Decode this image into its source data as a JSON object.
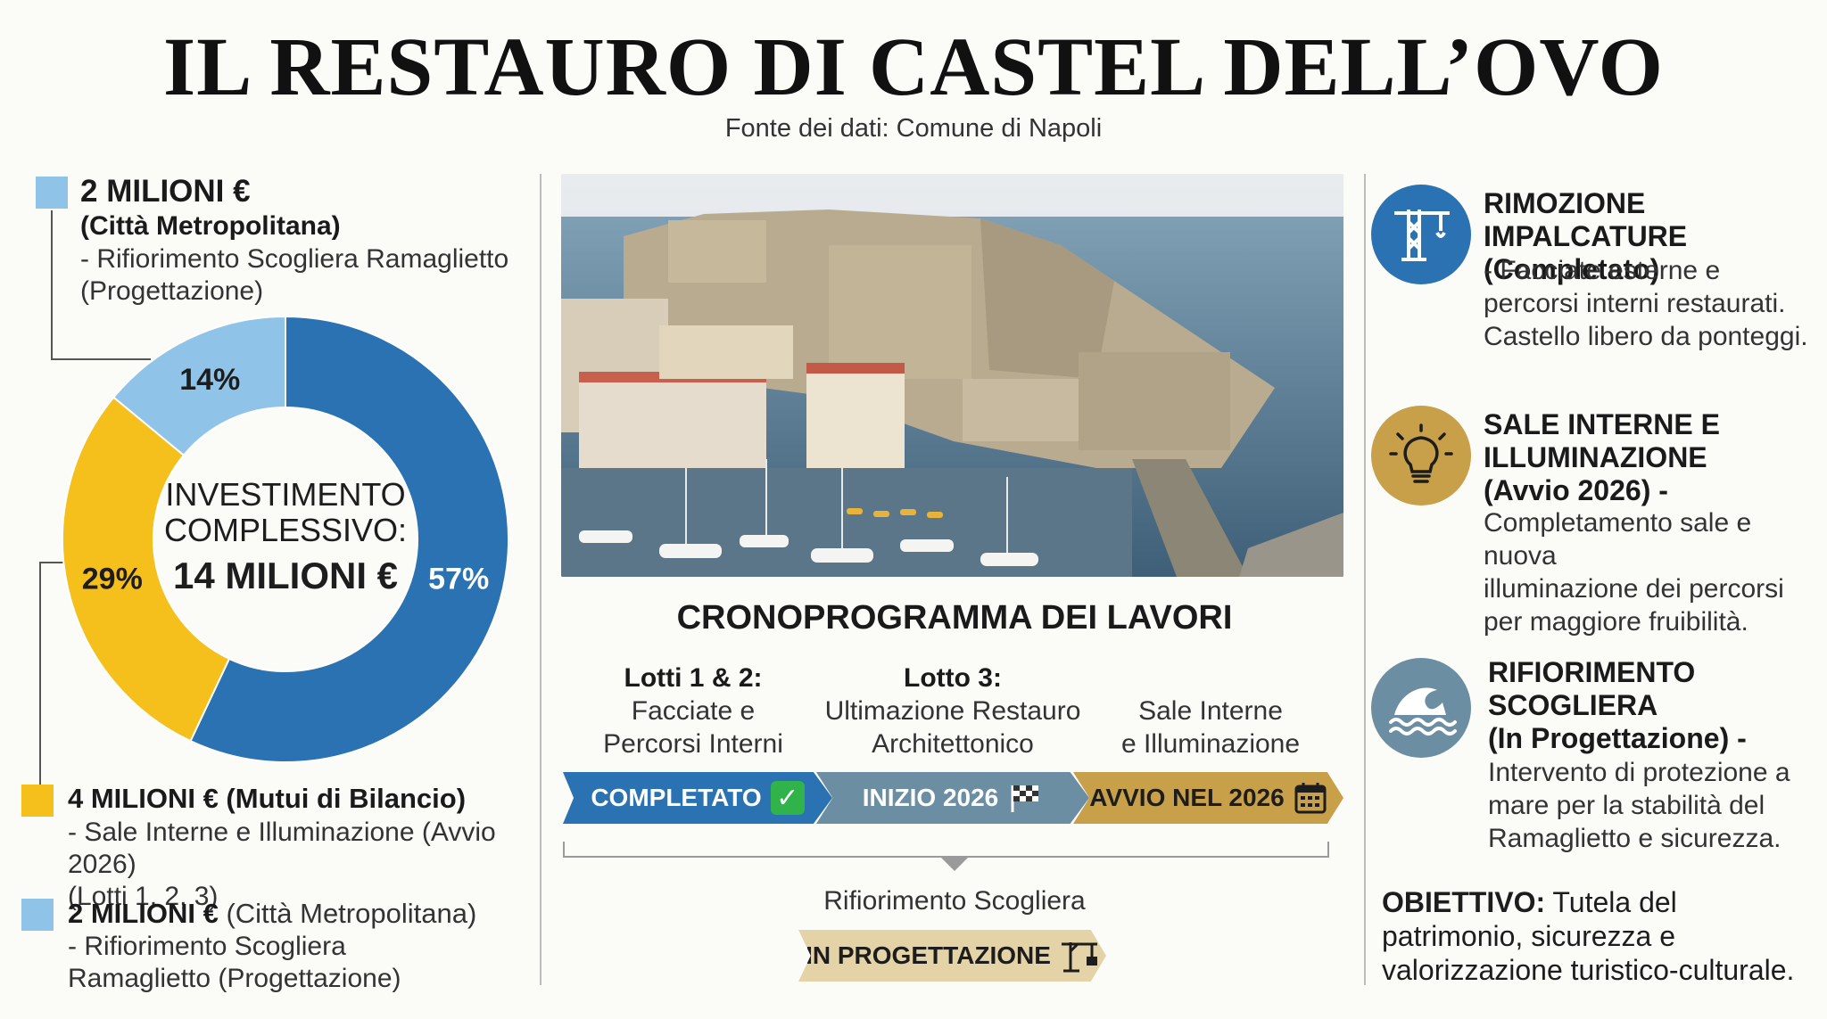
{
  "header": {
    "title": "IL RESTAURO DI CASTEL DELL’OVO",
    "source": "Fonte dei dati: Comune di Napoli"
  },
  "colors": {
    "blue_dark": "#2a72b2",
    "blue_light": "#8fc4e8",
    "gold": "#f5bf1c",
    "steel": "#6c8ea3",
    "bronze": "#c9a04a",
    "beige": "#e5d3a8"
  },
  "funding": {
    "top": {
      "amount": "2 MILIONI €",
      "entity": "(Città Metropolitana)",
      "desc": "- Rifiorimento Scogliera Ramaglietto\n(Progettazione)"
    },
    "middle": {
      "amount_entity": "4 MILIONI € (Mutui di Bilancio)",
      "desc": "- Sale Interne e Illuminazione (Avvio 2026)\n(Lotti 1, 2, 3)"
    },
    "bottom": {
      "amount": "2 MILIONI €",
      "entity": "(Città Metropolitana)",
      "desc": "- Rifiorimento Scogliera\nRamaglietto (Progettazione)"
    }
  },
  "chart_data": {
    "type": "pie",
    "title": "",
    "center_label": [
      "INVESTIMENTO",
      "COMPLESSIVO:",
      "14 MILIONI €"
    ],
    "categories": [
      "57%",
      "29%",
      "14%"
    ],
    "values": [
      57,
      29,
      14
    ],
    "colors": [
      "#2a72b2",
      "#f5bf1c",
      "#8fc4e8"
    ],
    "legend": "none"
  },
  "schedule": {
    "title": "CRONOPROGRAMMA DEI LAVORI",
    "lots": [
      {
        "head": "Lotti 1 & 2:",
        "line1": "Facciate e",
        "line2": "Percorsi Interni"
      },
      {
        "head": "Lotto 3:",
        "line1": "Ultimazione Restauro",
        "line2": "Architettonico"
      },
      {
        "head": "",
        "line1": "Sale Interne",
        "line2": "e Illuminazione"
      }
    ],
    "stages": [
      {
        "label": "COMPLETATO",
        "icon": "checkmark-icon"
      },
      {
        "label": "INIZIO 2026",
        "icon": "checkered-flag-icon"
      },
      {
        "label": "AVVIO NEL 2026",
        "icon": "calendar-icon"
      }
    ],
    "reef_label": "Rifiorimento Scogliera",
    "reef_stage": {
      "label": "IN PROGETTAZIONE",
      "icon": "crane-icon"
    }
  },
  "status": [
    {
      "icon": "crane-icon",
      "title": "RIMOZIONE IMPALCATURE\n(Completato)",
      "desc": "- Facciate esterne e\npercorsi interni restaurati.\nCastello libero da ponteggi."
    },
    {
      "icon": "light-bulb-icon",
      "title": "SALE INTERNE E\nILLUMINAZIONE\n(Avvio 2026) -",
      "desc": "Completamento sale e nuova\nilluminazione dei percorsi\nper maggiore fruibilità."
    },
    {
      "icon": "wave-icon",
      "title": "RIFIORIMENTO\nSCOGLIERA\n(In Progettazione) -",
      "desc": "Intervento di protezione a\nmare per la stabilità del\nRamaglietto e sicurezza."
    }
  ],
  "objective": {
    "label": "OBIETTIVO:",
    "text": " Tutela del patrimonio, sicurezza e valorizzazione turistico-culturale."
  }
}
